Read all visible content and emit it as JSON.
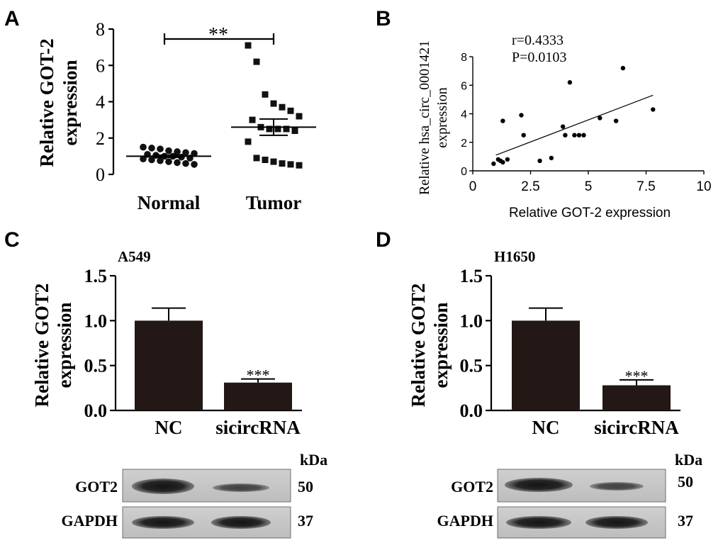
{
  "panels": {
    "a": "A",
    "b": "B",
    "c": "C",
    "d": "D"
  },
  "panel_a": {
    "ylabel_line1": "Relative  GOT-2",
    "ylabel_line2": "expression",
    "significance": "**",
    "yticks": [
      "0",
      "2",
      "4",
      "6",
      "8"
    ],
    "categories": [
      "Normal",
      "Tumor"
    ]
  },
  "panel_b": {
    "ylabel_line1": "Relative hsa_circ_0001421",
    "ylabel_line2": "expression",
    "xlabel": "Relative GOT-2 expression",
    "stat_r": "r=0.4333",
    "stat_p": "P=0.0103",
    "xticks": [
      "0",
      "2.5",
      "5",
      "7.5",
      "10"
    ],
    "yticks": [
      "0",
      "2",
      "4",
      "6",
      "8"
    ]
  },
  "panel_c": {
    "cell_line": "A549",
    "ylabel_line1": "Relative GOT2",
    "ylabel_line2": "expression",
    "yticks": [
      "0.0",
      "0.5",
      "1.0",
      "1.5"
    ],
    "categories": [
      "NC",
      "sicircRNA"
    ],
    "significance": "***",
    "blot": {
      "unit": "kDa",
      "rows": [
        {
          "name": "GOT2",
          "kda": "50"
        },
        {
          "name": "GAPDH",
          "kda": "37"
        }
      ]
    }
  },
  "panel_d": {
    "cell_line": "H1650",
    "ylabel_line1": "Relative GOT2",
    "ylabel_line2": "expression",
    "yticks": [
      "0.0",
      "0.5",
      "1.0",
      "1.5"
    ],
    "categories": [
      "NC",
      "sicircRNA"
    ],
    "significance": "***",
    "blot": {
      "unit": "kDa",
      "rows": [
        {
          "name": "GOT2",
          "kda": "50"
        },
        {
          "name": "GAPDH",
          "kda": "37"
        }
      ]
    }
  },
  "chart_data": [
    {
      "type": "scatter",
      "panel": "A",
      "categories": [
        "Normal",
        "Tumor"
      ],
      "ylim": [
        0,
        8
      ],
      "series": [
        {
          "name": "Normal",
          "values": [
            1.5,
            1.45,
            1.4,
            1.3,
            1.25,
            1.2,
            1.15,
            1.1,
            1.05,
            1.0,
            1.0,
            0.95,
            0.9,
            0.85,
            0.8,
            0.75,
            0.7,
            0.65,
            0.6,
            0.55
          ],
          "mean": 1.0,
          "sem": 0.06
        },
        {
          "name": "Tumor",
          "values": [
            7.1,
            6.2,
            4.4,
            3.9,
            3.7,
            3.5,
            3.2,
            3.0,
            2.6,
            2.5,
            2.5,
            2.5,
            2.4,
            1.8,
            0.9,
            0.8,
            0.7,
            0.6,
            0.55,
            0.5
          ],
          "mean": 2.6,
          "sem": 0.45
        }
      ],
      "significance": "**"
    },
    {
      "type": "scatter",
      "panel": "B",
      "xlim": [
        0,
        10
      ],
      "ylim": [
        0,
        8
      ],
      "x": [
        0.9,
        1.1,
        1.2,
        1.3,
        1.5,
        1.3,
        2.1,
        2.2,
        2.9,
        3.4,
        3.9,
        4.0,
        4.2,
        4.4,
        4.6,
        4.8,
        5.5,
        6.2,
        6.5,
        7.8
      ],
      "y": [
        0.5,
        0.8,
        0.7,
        3.5,
        0.8,
        0.6,
        3.9,
        2.5,
        0.7,
        0.9,
        3.1,
        2.5,
        6.2,
        2.5,
        2.5,
        2.5,
        3.7,
        3.5,
        7.2,
        4.3
      ],
      "fit_line": {
        "x": [
          1.0,
          7.8
        ],
        "y": [
          1.1,
          5.3
        ]
      }
    },
    {
      "type": "bar",
      "panel": "C",
      "categories": [
        "NC",
        "sicircRNA"
      ],
      "values": [
        1.0,
        0.31
      ],
      "errors": [
        0.14,
        0.04
      ],
      "ylim": [
        0,
        1.5
      ]
    },
    {
      "type": "bar",
      "panel": "D",
      "categories": [
        "NC",
        "sicircRNA"
      ],
      "values": [
        1.0,
        0.28
      ],
      "errors": [
        0.14,
        0.06
      ],
      "ylim": [
        0,
        1.5
      ]
    }
  ]
}
